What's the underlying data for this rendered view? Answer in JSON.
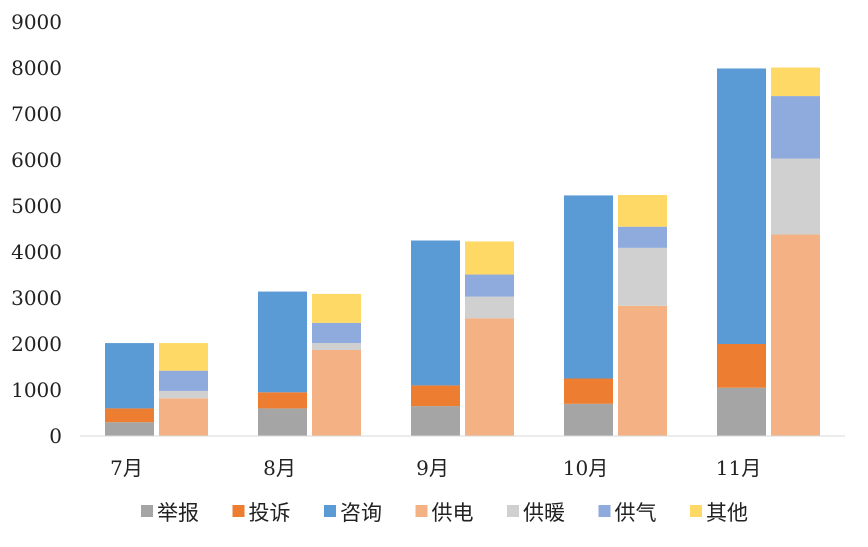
{
  "chart_data": {
    "type": "bar",
    "stacked": true,
    "grouped_stacks": true,
    "categories": [
      "7月",
      "8月",
      "9月",
      "10月",
      "11月"
    ],
    "ylim": [
      0,
      9000
    ],
    "yticks": [
      0,
      1000,
      2000,
      3000,
      4000,
      5000,
      6000,
      7000,
      8000,
      9000
    ],
    "grid": false,
    "legend_position": "bottom",
    "stacks": [
      {
        "id": "left",
        "series": [
          {
            "name": "举报",
            "color": "#A5A5A5",
            "values": [
              300,
              600,
              650,
              700,
              1050
            ]
          },
          {
            "name": "投诉",
            "color": "#ED7D31",
            "values": [
              300,
              350,
              450,
              550,
              950
            ]
          },
          {
            "name": "咨询",
            "color": "#5B9BD5",
            "values": [
              1420,
              2190,
              3150,
              3980,
              5990
            ]
          }
        ]
      },
      {
        "id": "right",
        "series": [
          {
            "name": "供电",
            "color": "#F4B183",
            "values": [
              820,
              1870,
              2560,
              2830,
              4380
            ]
          },
          {
            "name": "供暖",
            "color": "#D0D0D0",
            "values": [
              160,
              150,
              470,
              1260,
              1650
            ]
          },
          {
            "name": "供气",
            "color": "#8FAADC",
            "values": [
              440,
              440,
              480,
              460,
              1360
            ]
          },
          {
            "name": "其他",
            "color": "#FFD966",
            "values": [
              600,
              630,
              720,
              690,
              620
            ]
          }
        ]
      }
    ],
    "legend": [
      "举报",
      "投诉",
      "咨询",
      "供电",
      "供暖",
      "供气",
      "其他"
    ]
  }
}
